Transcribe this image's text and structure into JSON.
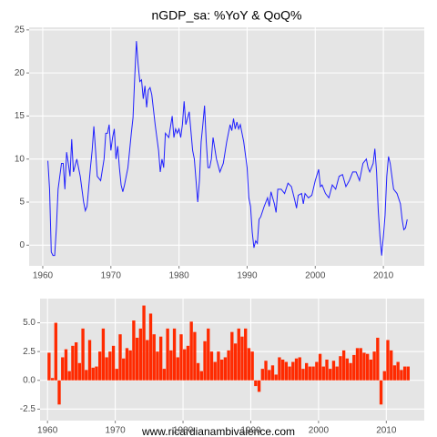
{
  "chart_data": [
    {
      "type": "line",
      "title": "nGDP_sa: %YoY & QoQ%",
      "color": "#1f1fff",
      "grid": true,
      "xlim": [
        1958,
        2016
      ],
      "xticks": [
        1960,
        1970,
        1980,
        1990,
        2000,
        2010
      ],
      "ylim": [
        -2.4,
        25.3
      ],
      "yticks": [
        0,
        5,
        10,
        15,
        20,
        25
      ],
      "x": [
        1960.75,
        1961.0,
        1961.25,
        1961.5,
        1961.75,
        1962.0,
        1962.25,
        1962.75,
        1963.0,
        1963.25,
        1963.5,
        1963.75,
        1964.0,
        1964.25,
        1964.5,
        1965.0,
        1965.5,
        1966.0,
        1966.25,
        1966.5,
        1967.0,
        1967.25,
        1967.5,
        1967.75,
        1968.0,
        1968.5,
        1969.0,
        1969.25,
        1969.5,
        1969.75,
        1970.0,
        1970.25,
        1970.5,
        1970.75,
        1971.0,
        1971.25,
        1971.5,
        1971.75,
        1972.0,
        1972.5,
        1973.0,
        1973.25,
        1973.5,
        1973.75,
        1974.0,
        1974.25,
        1974.5,
        1974.75,
        1975.0,
        1975.25,
        1975.5,
        1975.75,
        1976.0,
        1976.5,
        1977.0,
        1977.25,
        1977.5,
        1977.75,
        1978.0,
        1978.5,
        1979.0,
        1979.25,
        1979.5,
        1979.75,
        1980.0,
        1980.25,
        1980.5,
        1980.75,
        1981.0,
        1981.5,
        1982.0,
        1982.25,
        1982.5,
        1982.75,
        1983.0,
        1983.25,
        1983.5,
        1983.75,
        1984.0,
        1984.25,
        1984.5,
        1984.75,
        1985.0,
        1985.5,
        1986.0,
        1986.5,
        1987.0,
        1987.5,
        1987.75,
        1988.0,
        1988.25,
        1988.5,
        1988.75,
        1989.0,
        1989.5,
        1990.0,
        1990.25,
        1990.5,
        1990.75,
        1991.0,
        1991.25,
        1991.5,
        1991.75,
        1992.0,
        1992.5,
        1993.0,
        1993.25,
        1993.5,
        1994.0,
        1994.25,
        1994.5,
        1995.0,
        1995.5,
        1996.0,
        1996.5,
        1997.0,
        1997.25,
        1997.5,
        1998.0,
        1998.25,
        1998.5,
        1999.0,
        1999.5,
        2000.0,
        2000.5,
        2000.75,
        2001.0,
        2001.5,
        2002.0,
        2002.5,
        2003.0,
        2003.5,
        2004.0,
        2004.5,
        2005.0,
        2005.5,
        2006.0,
        2006.5,
        2007.0,
        2007.5,
        2007.75,
        2008.0,
        2008.5,
        2008.75,
        2009.0,
        2009.25,
        2009.5,
        2009.75,
        2010.0,
        2010.25,
        2010.5,
        2010.75,
        2011.0,
        2011.5,
        2012.0,
        2012.5,
        2012.75,
        2013.0,
        2013.25,
        2013.5
      ],
      "values": [
        9.8,
        6.5,
        -0.8,
        -1.2,
        -1.2,
        2,
        6.5,
        9.5,
        9.5,
        6.5,
        10.8,
        9.5,
        8,
        12.3,
        8.5,
        10,
        8,
        5,
        4,
        4.5,
        9,
        11,
        13.8,
        11,
        8,
        7.5,
        10,
        13,
        13,
        14,
        11,
        12.5,
        13.5,
        10,
        11.5,
        9,
        7,
        6.2,
        7,
        9,
        13,
        14.8,
        19.5,
        23.7,
        21,
        19,
        19.2,
        17,
        18.5,
        16,
        18,
        18.3,
        17.5,
        14,
        11,
        8.5,
        10,
        9,
        13,
        12.5,
        15,
        12.5,
        13.5,
        13,
        13.5,
        12.5,
        14,
        16.7,
        14,
        15.5,
        11,
        10,
        7.5,
        5,
        7.5,
        12,
        14,
        16.2,
        12,
        9,
        9,
        10,
        12.5,
        10,
        8.5,
        9.5,
        12,
        14,
        13.3,
        14.7,
        13.5,
        14.3,
        13.5,
        14,
        12,
        9,
        5.5,
        4.5,
        1.5,
        -0.3,
        0.5,
        0.2,
        3,
        3.3,
        4.5,
        5.5,
        4.5,
        6.2,
        4.8,
        3.8,
        6.5,
        6.5,
        6,
        7.2,
        6.8,
        5.2,
        4.3,
        5.8,
        6,
        4.8,
        6,
        5.5,
        5.8,
        7.5,
        8.8,
        6.8,
        7,
        6,
        5.5,
        7,
        6.5,
        8,
        8.2,
        6.8,
        7.5,
        8.5,
        8.5,
        7.5,
        9.5,
        10,
        9,
        8.5,
        9.5,
        11.2,
        8.5,
        4,
        1,
        -1.2,
        1,
        3.5,
        8,
        10.3,
        9.5,
        6.5,
        6,
        4.8,
        3,
        1.8,
        2,
        3
      ]
    },
    {
      "type": "bar",
      "color": "#ff2a00",
      "grid": true,
      "caption": "www.ricardianambivalence.com",
      "xlim": [
        1958.9,
        2015.6
      ],
      "xticks": [
        1960,
        1970,
        1980,
        1990,
        2000,
        2010
      ],
      "ylim": [
        -3.5,
        7.1
      ],
      "yticks": [
        -2.5,
        {
          "value": 0,
          "label": "0.0"
        },
        2.5,
        {
          "value": 5,
          "label": "5.0"
        }
      ],
      "x": [
        1960.0,
        1960.5,
        1961.0,
        1961.5,
        1962.0,
        1962.5,
        1963.0,
        1963.5,
        1964.0,
        1964.5,
        1965.0,
        1965.5,
        1966.0,
        1966.5,
        1967.0,
        1967.5,
        1968.0,
        1968.5,
        1969.0,
        1969.5,
        1970.0,
        1970.5,
        1971.0,
        1971.5,
        1972.0,
        1972.5,
        1973.0,
        1973.5,
        1974.0,
        1974.5,
        1975.0,
        1975.5,
        1976.0,
        1976.5,
        1977.0,
        1977.5,
        1978.0,
        1978.5,
        1979.0,
        1979.5,
        1980.0,
        1980.5,
        1981.0,
        1981.5,
        1982.0,
        1982.5,
        1983.0,
        1983.5,
        1984.0,
        1984.5,
        1985.0,
        1985.5,
        1986.0,
        1986.5,
        1987.0,
        1987.5,
        1988.0,
        1988.5,
        1989.0,
        1989.5,
        1990.0,
        1990.5,
        1991.0,
        1991.5,
        1992.0,
        1992.5,
        1993.0,
        1993.5,
        1994.0,
        1994.5,
        1995.0,
        1995.5,
        1996.0,
        1996.5,
        1997.0,
        1997.5,
        1998.0,
        1998.5,
        1999.0,
        1999.5,
        2000.0,
        2000.5,
        2001.0,
        2001.5,
        2002.0,
        2002.5,
        2003.0,
        2003.5,
        2004.0,
        2004.5,
        2005.0,
        2005.5,
        2006.0,
        2006.5,
        2007.0,
        2007.5,
        2008.0,
        2008.5,
        2009.0,
        2009.5,
        2010.0,
        2010.5,
        2011.0,
        2011.5,
        2012.0,
        2012.5,
        2013.0
      ],
      "values": [
        2.4,
        0.2,
        5.0,
        -2.1,
        2.0,
        2.7,
        0.8,
        3.0,
        3.3,
        1.5,
        4.5,
        0.9,
        3.5,
        1.1,
        1.2,
        2.5,
        4.5,
        2.0,
        2.5,
        3.0,
        1.0,
        4.0,
        1.9,
        2.8,
        2.6,
        5.2,
        3.7,
        4.5,
        6.5,
        3.5,
        5.8,
        4.0,
        2.5,
        3.8,
        1.0,
        4.5,
        2.6,
        4.5,
        2.0,
        4.0,
        2.7,
        3.0,
        5.1,
        4.2,
        1.5,
        0.8,
        3.4,
        4.5,
        2.5,
        1.6,
        2.5,
        1.8,
        2.0,
        2.6,
        4.2,
        3.2,
        4.5,
        3.8,
        4.5,
        2.8,
        2.5,
        -0.5,
        -1.0,
        1.0,
        1.7,
        0.9,
        1.3,
        0.5,
        2.0,
        1.8,
        1.6,
        1.2,
        1.6,
        1.9,
        2.0,
        1.0,
        1.5,
        1.2,
        1.2,
        1.6,
        2.3,
        1.2,
        1.8,
        1.0,
        1.7,
        1.2,
        2.1,
        2.6,
        1.9,
        1.5,
        2.2,
        2.8,
        2.8,
        2.4,
        2.3,
        1.8,
        2.5,
        3.7,
        -2.1,
        0.8,
        3.5,
        2.6,
        1.3,
        1.6,
        0.9,
        1.2,
        1.2
      ]
    }
  ]
}
